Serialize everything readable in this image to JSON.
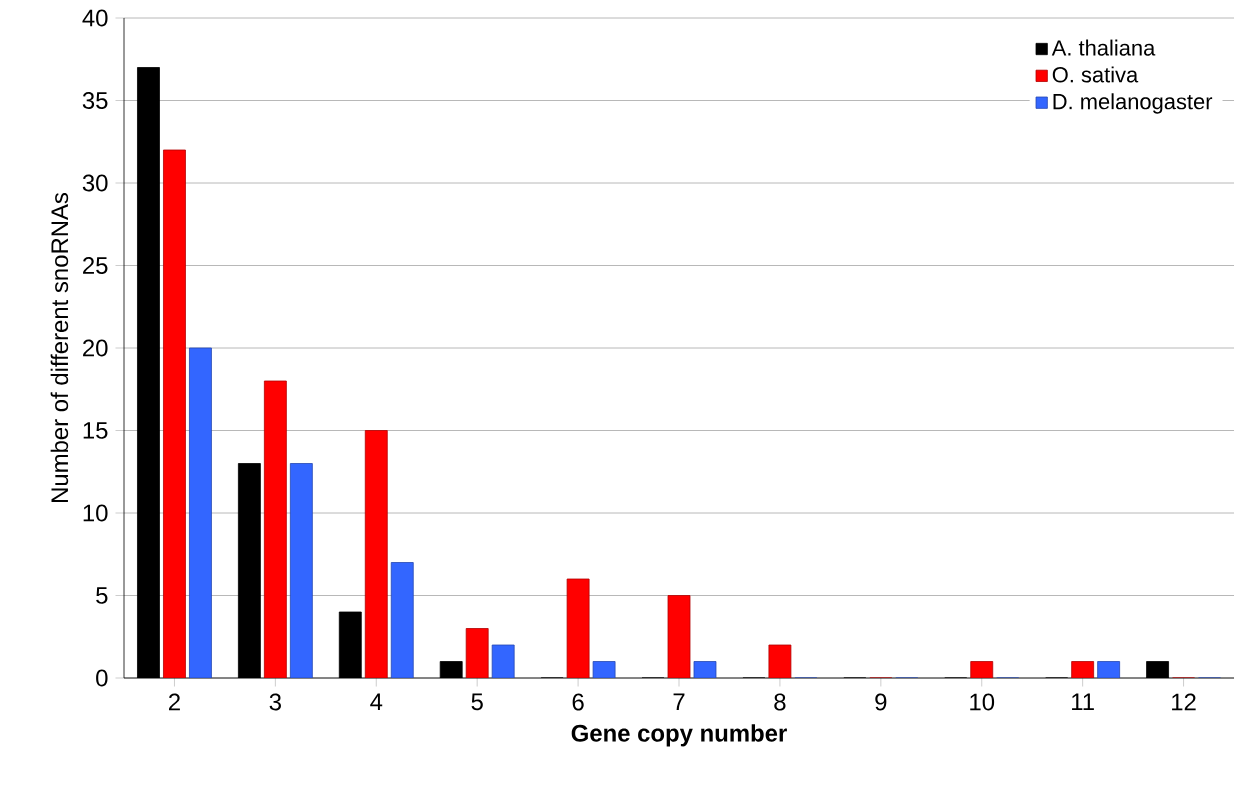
{
  "chart_data": {
    "type": "bar",
    "xlabel": "Gene copy number",
    "ylabel": "Number of different snoRNAs",
    "categories": [
      "2",
      "3",
      "4",
      "5",
      "6",
      "7",
      "8",
      "9",
      "10",
      "11",
      "12"
    ],
    "series": [
      {
        "name": "A. thaliana",
        "color": "#000000",
        "values": [
          37,
          13,
          4,
          1,
          0,
          0,
          0,
          0,
          0,
          0,
          1
        ]
      },
      {
        "name": "O. sativa",
        "color": "#ff0000",
        "values": [
          32,
          18,
          15,
          3,
          6,
          5,
          2,
          0,
          1,
          1,
          0
        ]
      },
      {
        "name": "D. melanogaster",
        "color": "#3366ff",
        "values": [
          20,
          13,
          7,
          2,
          1,
          1,
          0,
          0,
          0,
          1,
          0
        ]
      }
    ],
    "ylim": [
      0,
      40
    ],
    "yticks": [
      0,
      5,
      10,
      15,
      20,
      25,
      30,
      35,
      40
    ],
    "grid": "y",
    "legend": "top right"
  }
}
